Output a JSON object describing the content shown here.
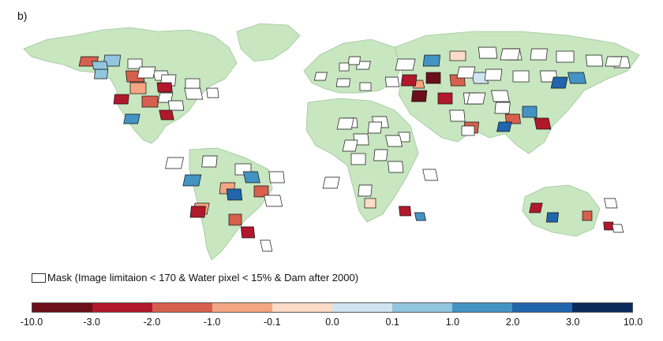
{
  "panel_label": "b)",
  "colors": {
    "land": "#c8e6c0",
    "land_stroke": "#9cc79a",
    "basin_stroke": "#111111",
    "mask_fill": "#ffffff",
    "ocean": "#ffffff"
  },
  "mask_legend": {
    "icon": "white-square-swatch",
    "label": "Mask (Image limitaion < 170 & Water pixel < 15% & Dam after 2000)"
  },
  "colorbar": {
    "colors": [
      "#6b0f1a",
      "#b2182b",
      "#d6604d",
      "#f4a582",
      "#fddbc7",
      "#d1e5f0",
      "#92c5de",
      "#4393c3",
      "#2166ac",
      "#0b2a5c"
    ],
    "ticks": [
      "-10.0",
      "-3.0",
      "-2.0",
      "-1.0",
      "-0.1",
      "0.0",
      "0.1",
      "1.0",
      "2.0",
      "3.0",
      "10.0"
    ]
  },
  "continents": [
    "North America",
    "Greenland",
    "South America",
    "Europe",
    "Africa",
    "Asia",
    "Australia"
  ]
}
